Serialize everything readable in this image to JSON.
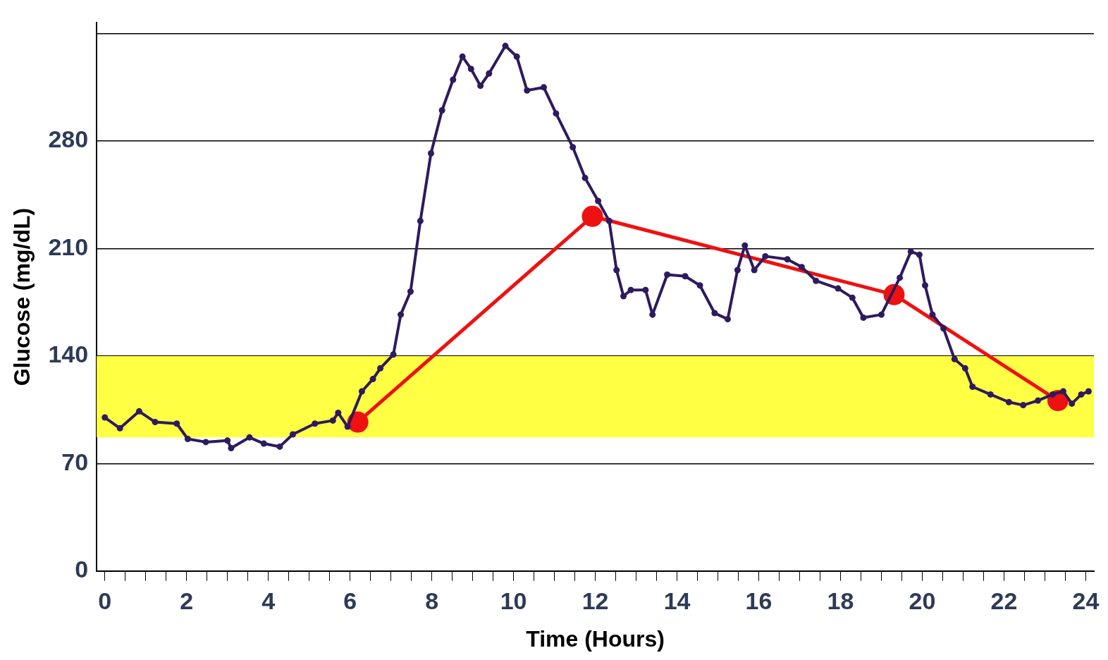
{
  "chart_data": {
    "type": "line",
    "xlabel": "Time (Hours)",
    "ylabel": "Glucose (mg/dL)",
    "xlim": [
      -0.2,
      24.2
    ],
    "ylim": [
      0,
      357
    ],
    "xticks": [
      0,
      {
        "value": 0.5,
        "label": null
      },
      {
        "value": 1,
        "label": null
      },
      {
        "value": 1.5,
        "label": null
      },
      2,
      {
        "value": 2.5,
        "label": null
      },
      {
        "value": 3,
        "label": null
      },
      {
        "value": 3.5,
        "label": null
      },
      4,
      {
        "value": 4.5,
        "label": null
      },
      {
        "value": 5,
        "label": null
      },
      {
        "value": 5.5,
        "label": null
      },
      6,
      {
        "value": 6.5,
        "label": null
      },
      {
        "value": 7,
        "label": null
      },
      {
        "value": 7.5,
        "label": null
      },
      8,
      {
        "value": 8.5,
        "label": null
      },
      {
        "value": 9,
        "label": null
      },
      {
        "value": 9.5,
        "label": null
      },
      10,
      {
        "value": 10.5,
        "label": null
      },
      {
        "value": 11,
        "label": null
      },
      {
        "value": 11.5,
        "label": null
      },
      12,
      {
        "value": 12.5,
        "label": null
      },
      {
        "value": 13,
        "label": null
      },
      {
        "value": 13.5,
        "label": null
      },
      14,
      {
        "value": 14.5,
        "label": null
      },
      {
        "value": 15,
        "label": null
      },
      {
        "value": 15.5,
        "label": null
      },
      16,
      {
        "value": 16.5,
        "label": null
      },
      {
        "value": 17,
        "label": null
      },
      {
        "value": 17.5,
        "label": null
      },
      18,
      {
        "value": 18.5,
        "label": null
      },
      {
        "value": 19,
        "label": null
      },
      {
        "value": 19.5,
        "label": null
      },
      20,
      {
        "value": 20.5,
        "label": null
      },
      {
        "value": 21,
        "label": null
      },
      {
        "value": 21.5,
        "label": null
      },
      22,
      {
        "value": 22.5,
        "label": null
      },
      {
        "value": 23,
        "label": null
      },
      {
        "value": 23.5,
        "label": null
      },
      24
    ],
    "yticks": [
      0,
      70,
      140,
      210,
      280,
      {
        "value": 350,
        "label": null
      }
    ],
    "grid": "y",
    "marker": "circle",
    "line_style": "solid",
    "bands": [
      {
        "axis": "y",
        "from": 87,
        "to": 140,
        "color": "#ffff44"
      }
    ],
    "series": [
      {
        "color": "#2e1a5e",
        "x": [
          0,
          0.37,
          0.84,
          1.23,
          1.76,
          2.03,
          2.47,
          3.0,
          3.09,
          3.54,
          3.89,
          4.28,
          4.6,
          5.14,
          5.58,
          5.71,
          5.94,
          6.29,
          6.56,
          6.74,
          7.06,
          7.24,
          7.48,
          7.72,
          7.98,
          8.25,
          8.52,
          8.75,
          8.96,
          9.19,
          9.4,
          9.8,
          10.08,
          10.33,
          10.74,
          11.04,
          11.45,
          11.75,
          12.07,
          12.34,
          12.52,
          12.69,
          12.87,
          13.23,
          13.4,
          13.76,
          14.2,
          14.56,
          14.92,
          15.24,
          15.48,
          15.66,
          15.89,
          16.16,
          16.7,
          17.05,
          17.4,
          17.94,
          18.29,
          18.56,
          19.0,
          19.45,
          19.72,
          19.93,
          20.07,
          20.25,
          20.52,
          20.79,
          21.05,
          21.23,
          21.67,
          22.12,
          22.47,
          22.83,
          23.19,
          23.45,
          23.66,
          23.89,
          24.07
        ],
        "values": [
          100,
          93,
          104,
          97,
          96,
          86,
          84,
          85,
          80,
          87,
          83,
          81,
          89,
          96,
          98,
          103,
          94,
          117,
          125,
          132,
          141,
          167,
          182,
          228,
          272,
          300,
          320,
          335,
          327,
          316,
          324,
          342,
          335,
          313,
          315,
          298,
          276,
          256,
          241,
          228,
          196,
          179,
          183,
          183,
          167,
          193,
          192,
          186,
          168,
          164,
          196,
          212,
          196,
          205,
          203,
          198,
          189,
          184,
          178,
          165,
          167,
          191,
          208,
          206,
          186,
          167,
          158,
          138,
          132,
          120,
          115,
          110,
          108,
          111,
          115,
          117,
          109,
          115,
          117
        ]
      },
      {
        "color": "#ee1111",
        "x": [
          6.19,
          11.93,
          19.31,
          23.32
        ],
        "values": [
          97,
          231,
          180,
          111
        ]
      }
    ]
  }
}
